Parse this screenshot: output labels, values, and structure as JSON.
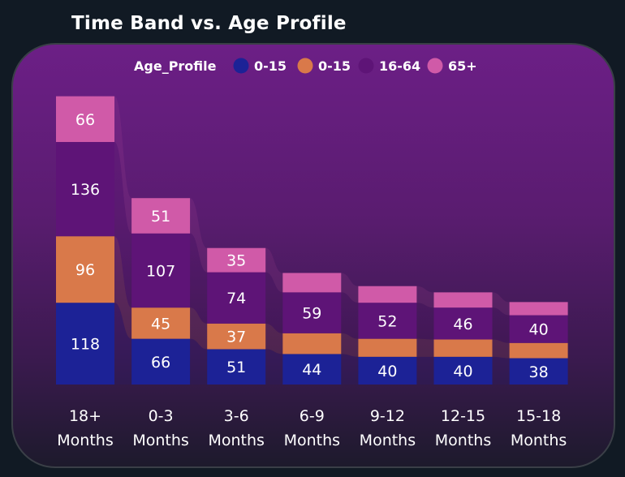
{
  "title": "Time Band vs. Age Profile",
  "colors": {
    "series": [
      "#1c2296",
      "#d9794a",
      "#5e1477",
      "#d05aa8"
    ],
    "ribbon": "#ffffff"
  },
  "chart_data": {
    "type": "bar",
    "stacked": true,
    "title": "Time Band vs. Age Profile",
    "legend_title": "Age_Profile",
    "legend_position": "top",
    "categories": [
      "18+ Months",
      "0-3 Months",
      "3-6 Months",
      "6-9 Months",
      "9-12 Months",
      "12-15 Months",
      "15-18 Months"
    ],
    "category_lines": [
      [
        "18+",
        "Months"
      ],
      [
        "0-3",
        "Months"
      ],
      [
        "3-6",
        "Months"
      ],
      [
        "6-9",
        "Months"
      ],
      [
        "9-12",
        "Months"
      ],
      [
        "12-15",
        "Months"
      ],
      [
        "15-18",
        "Months"
      ]
    ],
    "series": [
      {
        "name": "0-15",
        "values": [
          118,
          66,
          51,
          44,
          40,
          40,
          38
        ],
        "shown": [
          true,
          true,
          true,
          true,
          true,
          true,
          true
        ]
      },
      {
        "name": "0-15",
        "values": [
          96,
          45,
          37,
          30,
          26,
          25,
          22
        ],
        "shown": [
          true,
          true,
          true,
          false,
          false,
          false,
          false
        ]
      },
      {
        "name": "16-64",
        "values": [
          136,
          107,
          74,
          59,
          52,
          46,
          40
        ],
        "shown": [
          true,
          true,
          true,
          true,
          true,
          true,
          true
        ]
      },
      {
        "name": "65+",
        "values": [
          66,
          51,
          35,
          28,
          24,
          22,
          19
        ],
        "shown": [
          true,
          true,
          true,
          false,
          false,
          false,
          false
        ]
      }
    ],
    "ylim": [
      0,
      420
    ],
    "grid": false
  }
}
